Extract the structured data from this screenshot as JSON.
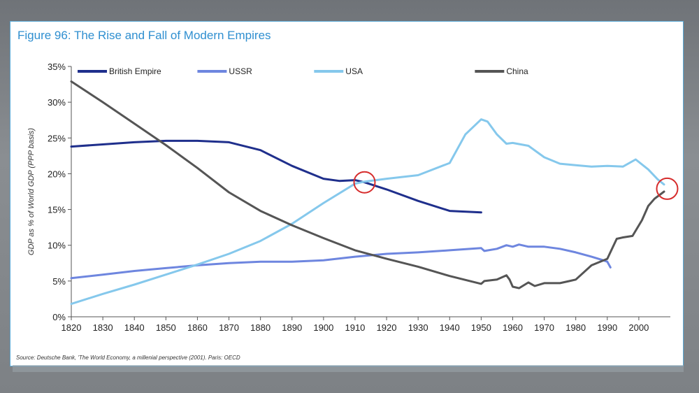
{
  "chart_data": {
    "type": "line",
    "title": "Figure 96: The Rise and Fall of Modern Empires",
    "xlabel": "",
    "ylabel": "GDP as % of World GDP (PPP basis)",
    "xlim": [
      1820,
      2010
    ],
    "ylim": [
      0,
      35
    ],
    "x_ticks": [
      "1820",
      "1830",
      "1840",
      "1850",
      "1860",
      "1870",
      "1880",
      "1890",
      "1900",
      "1910",
      "1920",
      "1930",
      "1940",
      "1950",
      "1960",
      "1970",
      "1980",
      "1990",
      "2000"
    ],
    "y_ticks": [
      "0%",
      "5%",
      "10%",
      "15%",
      "20%",
      "25%",
      "30%",
      "35%"
    ],
    "y_tick_values": [
      0,
      5,
      10,
      15,
      20,
      25,
      30,
      35
    ],
    "x_tick_values": [
      1820,
      1830,
      1840,
      1850,
      1860,
      1870,
      1880,
      1890,
      1900,
      1910,
      1920,
      1930,
      1940,
      1950,
      1960,
      1970,
      1980,
      1990,
      2000
    ],
    "legend_position": "top",
    "grid": false,
    "series": [
      {
        "name": "British Empire",
        "color": "#1f2f8c",
        "points": [
          [
            1820,
            23.8
          ],
          [
            1830,
            24.1
          ],
          [
            1840,
            24.4
          ],
          [
            1850,
            24.6
          ],
          [
            1860,
            24.6
          ],
          [
            1870,
            24.4
          ],
          [
            1880,
            23.3
          ],
          [
            1890,
            21.1
          ],
          [
            1900,
            19.3
          ],
          [
            1905,
            19.0
          ],
          [
            1910,
            19.1
          ],
          [
            1913,
            18.8
          ],
          [
            1920,
            17.8
          ],
          [
            1930,
            16.2
          ],
          [
            1940,
            14.8
          ],
          [
            1950,
            14.6
          ]
        ]
      },
      {
        "name": "USSR",
        "color": "#6e86df",
        "points": [
          [
            1820,
            5.4
          ],
          [
            1830,
            5.9
          ],
          [
            1840,
            6.4
          ],
          [
            1850,
            6.8
          ],
          [
            1860,
            7.2
          ],
          [
            1870,
            7.5
          ],
          [
            1880,
            7.7
          ],
          [
            1890,
            7.7
          ],
          [
            1900,
            7.9
          ],
          [
            1910,
            8.4
          ],
          [
            1920,
            8.8
          ],
          [
            1930,
            9.0
          ],
          [
            1940,
            9.3
          ],
          [
            1950,
            9.6
          ],
          [
            1951,
            9.2
          ],
          [
            1955,
            9.5
          ],
          [
            1958,
            10.0
          ],
          [
            1960,
            9.8
          ],
          [
            1962,
            10.1
          ],
          [
            1965,
            9.8
          ],
          [
            1970,
            9.8
          ],
          [
            1975,
            9.5
          ],
          [
            1980,
            9.0
          ],
          [
            1985,
            8.4
          ],
          [
            1988,
            8.0
          ],
          [
            1990,
            7.7
          ],
          [
            1991,
            6.9
          ]
        ]
      },
      {
        "name": "USA",
        "color": "#85c8ec",
        "points": [
          [
            1820,
            1.8
          ],
          [
            1830,
            3.2
          ],
          [
            1840,
            4.5
          ],
          [
            1850,
            5.9
          ],
          [
            1860,
            7.3
          ],
          [
            1870,
            8.8
          ],
          [
            1880,
            10.6
          ],
          [
            1890,
            13.0
          ],
          [
            1900,
            15.9
          ],
          [
            1910,
            18.6
          ],
          [
            1913,
            18.9
          ],
          [
            1920,
            19.3
          ],
          [
            1930,
            19.8
          ],
          [
            1940,
            21.5
          ],
          [
            1945,
            25.5
          ],
          [
            1950,
            27.6
          ],
          [
            1952,
            27.3
          ],
          [
            1955,
            25.5
          ],
          [
            1958,
            24.2
          ],
          [
            1960,
            24.3
          ],
          [
            1965,
            23.9
          ],
          [
            1970,
            22.3
          ],
          [
            1975,
            21.4
          ],
          [
            1980,
            21.2
          ],
          [
            1985,
            21.0
          ],
          [
            1990,
            21.1
          ],
          [
            1995,
            21.0
          ],
          [
            1999,
            22.0
          ],
          [
            2003,
            20.6
          ],
          [
            2006,
            19.2
          ],
          [
            2008,
            18.5
          ]
        ]
      },
      {
        "name": "China",
        "color": "#555555",
        "points": [
          [
            1820,
            32.9
          ],
          [
            1830,
            30.0
          ],
          [
            1840,
            27.0
          ],
          [
            1850,
            24.0
          ],
          [
            1860,
            20.8
          ],
          [
            1870,
            17.4
          ],
          [
            1880,
            14.8
          ],
          [
            1890,
            12.8
          ],
          [
            1900,
            11.0
          ],
          [
            1910,
            9.3
          ],
          [
            1920,
            8.1
          ],
          [
            1930,
            7.0
          ],
          [
            1940,
            5.7
          ],
          [
            1950,
            4.6
          ],
          [
            1951,
            5.0
          ],
          [
            1955,
            5.2
          ],
          [
            1958,
            5.8
          ],
          [
            1959,
            5.2
          ],
          [
            1960,
            4.2
          ],
          [
            1962,
            4.0
          ],
          [
            1965,
            4.8
          ],
          [
            1967,
            4.3
          ],
          [
            1970,
            4.7
          ],
          [
            1975,
            4.7
          ],
          [
            1978,
            5.0
          ],
          [
            1980,
            5.2
          ],
          [
            1985,
            7.2
          ],
          [
            1990,
            8.1
          ],
          [
            1993,
            10.9
          ],
          [
            1995,
            11.1
          ],
          [
            1998,
            11.3
          ],
          [
            2001,
            13.5
          ],
          [
            2003,
            15.5
          ],
          [
            2005,
            16.5
          ],
          [
            2008,
            17.5
          ]
        ]
      }
    ],
    "annotations": [
      {
        "type": "circle",
        "x": 1913,
        "y": 18.8,
        "color": "#d62c2c"
      },
      {
        "type": "circle",
        "x": 2009,
        "y": 17.9,
        "color": "#d62c2c"
      }
    ]
  },
  "source": "Source: Deutsche Bank, 'The World Economy, a millenial perspective (2001). Paris: OECD",
  "colors": {
    "title": "#2f8fd0",
    "frame_border": "#5aa9d6",
    "axis": "#555555"
  }
}
